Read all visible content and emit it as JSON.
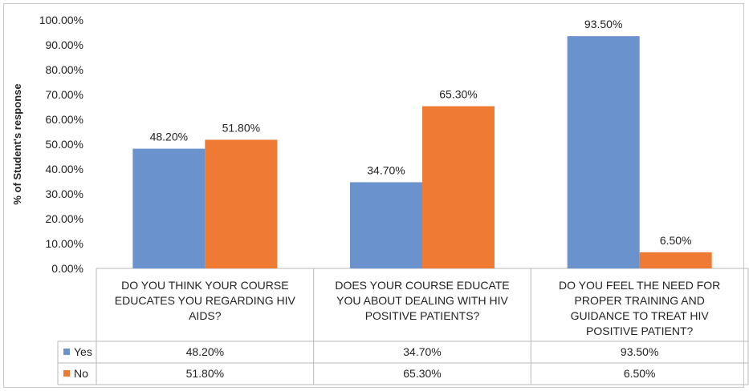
{
  "chart_data": {
    "type": "bar",
    "ylabel": "% of Student's response",
    "ylim": [
      0,
      100
    ],
    "yticks": [
      "0.00%",
      "10.00%",
      "20.00%",
      "30.00%",
      "40.00%",
      "50.00%",
      "60.00%",
      "70.00%",
      "80.00%",
      "90.00%",
      "100.00%"
    ],
    "categories": [
      [
        "DO YOU THINK YOUR COURSE",
        "EDUCATES YOU REGARDING HIV",
        "AIDS?"
      ],
      [
        "DOES YOUR COURSE EDUCATE",
        "YOU ABOUT DEALING WITH HIV",
        "POSITIVE PATIENTS?"
      ],
      [
        "DO YOU FEEL THE NEED FOR",
        "PROPER TRAINING AND",
        "GUIDANCE TO TREAT HIV",
        "POSITIVE PATIENT?"
      ]
    ],
    "series": [
      {
        "name": "Yes",
        "color": "#6a92cc",
        "values": [
          48.2,
          34.7,
          93.5
        ],
        "labels": [
          "48.20%",
          "34.70%",
          "93.50%"
        ]
      },
      {
        "name": "No",
        "color": "#ee7a33",
        "values": [
          51.8,
          65.3,
          6.5
        ],
        "labels": [
          "51.80%",
          "65.30%",
          "6.50%"
        ]
      }
    ],
    "grid": false,
    "legend": "data-table"
  }
}
